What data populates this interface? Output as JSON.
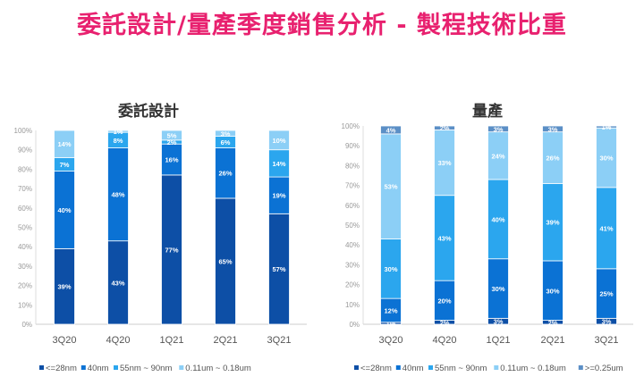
{
  "title": "委託設計/量產季度銷售分析 - 製程技術比重",
  "chart_data": [
    {
      "type": "bar",
      "stacked": true,
      "title": "委託設計",
      "categories": [
        "3Q20",
        "4Q20",
        "1Q21",
        "2Q21",
        "3Q21"
      ],
      "ylim": [
        0,
        100
      ],
      "yticks": [
        "0%",
        "10%",
        "20%",
        "30%",
        "40%",
        "50%",
        "60%",
        "70%",
        "80%",
        "90%",
        "100%"
      ],
      "legend": "bottom",
      "series": [
        {
          "name": "<=28nm",
          "color": "#0d4fa6",
          "values": [
            39,
            43,
            77,
            65,
            57
          ]
        },
        {
          "name": "40nm",
          "color": "#0b72d4",
          "values": [
            40,
            48,
            16,
            26,
            19
          ]
        },
        {
          "name": "55nm ~ 90nm",
          "color": "#2ba6ee",
          "values": [
            7,
            8,
            2,
            6,
            14
          ]
        },
        {
          "name": "0.11um ~ 0.18um",
          "color": "#8ccff6",
          "values": [
            14,
            1,
            5,
            3,
            10
          ]
        }
      ]
    },
    {
      "type": "bar",
      "stacked": true,
      "title": "量產",
      "categories": [
        "3Q20",
        "4Q20",
        "1Q21",
        "2Q21",
        "3Q21"
      ],
      "ylim": [
        0,
        100
      ],
      "yticks": [
        "0%",
        "10%",
        "20%",
        "30%",
        "40%",
        "50%",
        "60%",
        "70%",
        "80%",
        "90%",
        "100%"
      ],
      "legend": "bottom",
      "series": [
        {
          "name": "<=28nm",
          "color": "#0d4fa6",
          "values": [
            1,
            2,
            3,
            2,
            3
          ]
        },
        {
          "name": "40nm",
          "color": "#0b72d4",
          "values": [
            12,
            20,
            30,
            30,
            25
          ]
        },
        {
          "name": "55nm ~ 90nm",
          "color": "#2ba6ee",
          "values": [
            30,
            43,
            40,
            39,
            41
          ]
        },
        {
          "name": "0.11um ~ 0.18um",
          "color": "#8ccff6",
          "values": [
            53,
            33,
            24,
            26,
            30
          ]
        },
        {
          "name": ">=0.25um",
          "color": "#5b8fc6",
          "values": [
            4,
            2,
            3,
            3,
            1
          ]
        }
      ]
    }
  ]
}
